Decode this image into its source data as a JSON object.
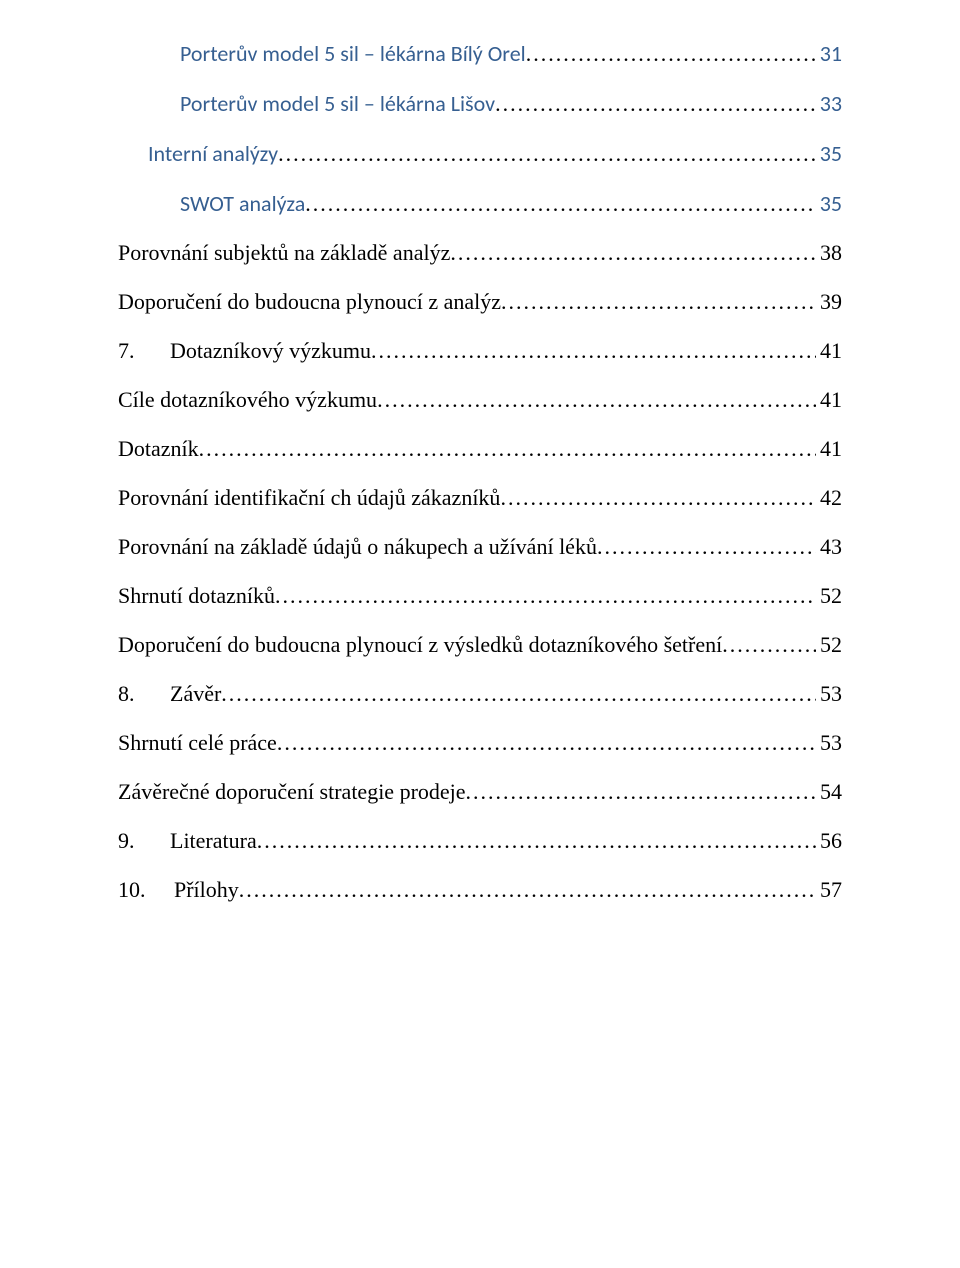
{
  "toc": {
    "lines": [
      {
        "label": "Porterův model 5 sil – lékárna Bílý Orel",
        "page": "31",
        "style": "heading",
        "indent": 2
      },
      {
        "label": "Porterův model 5 sil – lékárna Lišov",
        "page": "33",
        "style": "heading",
        "indent": 2
      },
      {
        "label": "Interní analýzy",
        "page": "35",
        "style": "heading",
        "indent": 1
      },
      {
        "label": "SWOT analýza",
        "page": "35",
        "style": "heading",
        "indent": 2
      },
      {
        "label": "Porovnání subjektů na základě analýz",
        "page": "38",
        "style": "serif",
        "indent": 0
      },
      {
        "label": "Doporučení do budoucna plynoucí z analýz",
        "page": "39",
        "style": "serif",
        "indent": 0
      },
      {
        "num": "7.",
        "label": "Dotazníkový výzkumu",
        "page": "41",
        "style": "serif",
        "indent": 0,
        "numbered": true
      },
      {
        "label": "Cíle dotazníkového výzkumu",
        "page": "41",
        "style": "serif",
        "indent": 0
      },
      {
        "label": "Dotazník",
        "page": "41",
        "style": "serif",
        "indent": 0
      },
      {
        "label": "Porovnání identifikační ch údajů zákazníků",
        "page": "42",
        "style": "serif",
        "indent": 0
      },
      {
        "label": "Porovnání na základě údajů o nákupech a užívání léků",
        "page": "43",
        "style": "serif",
        "indent": 0
      },
      {
        "label": "Shrnutí dotazníků",
        "page": "52",
        "style": "serif",
        "indent": 0
      },
      {
        "label": "Doporučení do budoucna plynoucí z výsledků dotazníkového šetření",
        "page": "52",
        "style": "serif",
        "indent": 0
      },
      {
        "num": "8.",
        "label": "Závěr",
        "page": "53",
        "style": "serif",
        "indent": 0,
        "numbered": true
      },
      {
        "label": "Shrnutí celé práce",
        "page": "53",
        "style": "serif",
        "indent": 0
      },
      {
        "label": "Závěrečné doporučení strategie prodeje",
        "page": "54",
        "style": "serif",
        "indent": 0
      },
      {
        "num": "9.",
        "label": "Literatura",
        "page": "56",
        "style": "serif",
        "indent": 0,
        "numbered": true
      },
      {
        "num": "10.",
        "label": "Přílohy",
        "page": "57",
        "style": "serif",
        "indent": 0,
        "numbered": true
      }
    ]
  },
  "colors": {
    "heading": "#365f91",
    "text": "#000000",
    "background": "#ffffff"
  },
  "typography": {
    "heading_font": "Calibri",
    "body_font": "Times New Roman",
    "font_size_pt": 12
  }
}
